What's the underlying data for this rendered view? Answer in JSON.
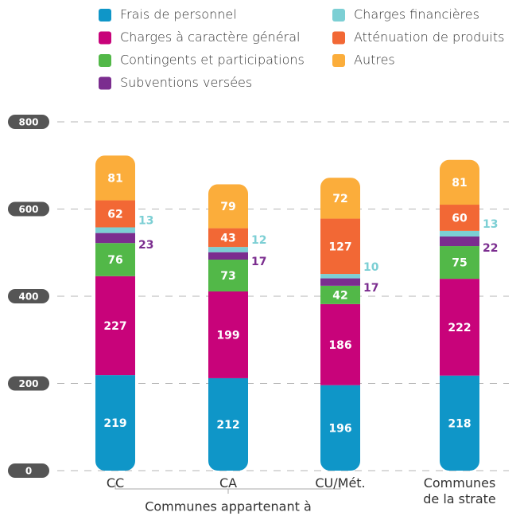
{
  "chart_data": {
    "type": "stacked_bar",
    "categories": [
      "CC",
      "CA",
      "CU/Mét.",
      "Communes de la strate"
    ],
    "group_label": "Communes appartenant à",
    "series": [
      {
        "name": "Frais de personnel",
        "color": "#0f96c8",
        "values": [
          219,
          212,
          196,
          218
        ]
      },
      {
        "name": "Charges à caractère général",
        "color": "#c8037a",
        "values": [
          227,
          199,
          186,
          222
        ]
      },
      {
        "name": "Contingents et participations",
        "color": "#52b848",
        "values": [
          76,
          73,
          42,
          75
        ]
      },
      {
        "name": "Subventions versées",
        "color": "#7b2d8f",
        "values": [
          23,
          17,
          17,
          22
        ]
      },
      {
        "name": "Charges financières",
        "color": "#7ccfd4",
        "values": [
          13,
          12,
          10,
          13
        ]
      },
      {
        "name": "Atténuation de produits",
        "color": "#f26835",
        "values": [
          62,
          43,
          127,
          60
        ]
      },
      {
        "name": "Autres",
        "color": "#fbad3b",
        "values": [
          81,
          79,
          72,
          81
        ]
      }
    ],
    "ylim": [
      0,
      800
    ],
    "yticks": [
      0,
      200,
      400,
      600,
      800
    ],
    "grid": true
  }
}
